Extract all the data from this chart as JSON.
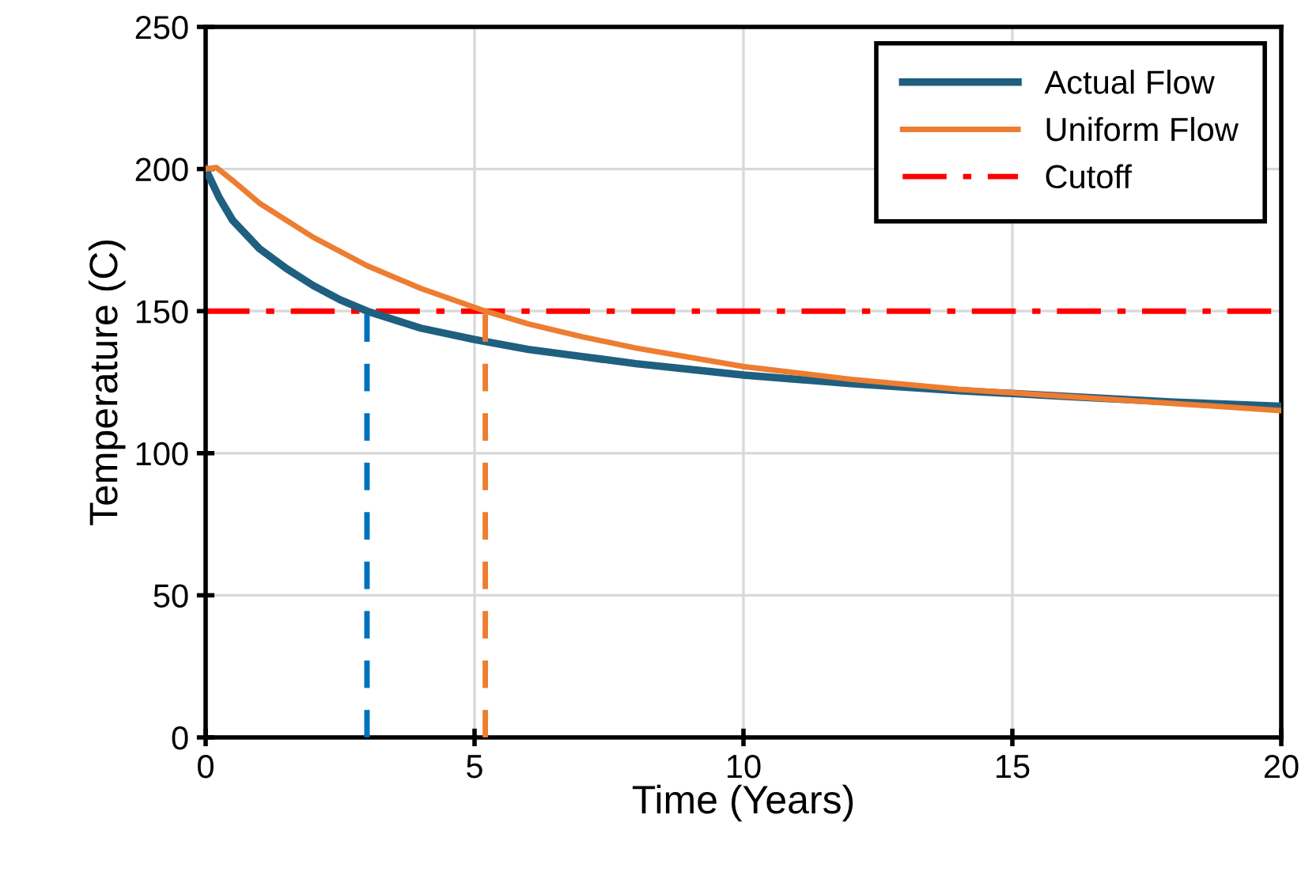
{
  "chart_data": {
    "type": "line",
    "xlabel": "Time (Years)",
    "ylabel": "Temperature (C)",
    "xlim": [
      0,
      20
    ],
    "xticks": [
      0,
      5,
      10,
      15,
      20
    ],
    "ylim": [
      0,
      250
    ],
    "yticks": [
      0,
      50,
      100,
      150,
      200,
      250
    ],
    "grid": true,
    "legend": "top right",
    "marker": "none",
    "series": [
      {
        "name": "Actual Flow",
        "color": "#1f5f7f",
        "line_style": "solid",
        "x": [
          0,
          0.25,
          0.5,
          1,
          1.5,
          2,
          2.5,
          3,
          4,
          5,
          6,
          7,
          8,
          10,
          12,
          14,
          16,
          18,
          20
        ],
        "values": [
          200,
          190,
          182,
          172,
          165,
          159,
          154,
          150,
          144,
          140,
          136.5,
          134,
          131.5,
          127.5,
          124.5,
          122,
          120,
          118,
          116.5
        ]
      },
      {
        "name": "Uniform Flow",
        "color": "#ed7d31",
        "line_style": "solid",
        "x": [
          0,
          0.2,
          0.5,
          1,
          2,
          3,
          4,
          5.2,
          6,
          7,
          8,
          10,
          12,
          14,
          16,
          18,
          20
        ],
        "values": [
          200,
          200.5,
          196,
          188,
          176,
          166,
          158,
          150,
          145.5,
          141,
          137,
          130.5,
          126,
          122.5,
          120,
          117.5,
          115
        ]
      },
      {
        "color": "#0070c0",
        "line_style": "dashed",
        "x": [
          3,
          3
        ],
        "values": [
          0,
          150
        ]
      },
      {
        "color": "#ed7d31",
        "line_style": "dashed",
        "x": [
          5.2,
          5.2
        ],
        "values": [
          0,
          150
        ]
      }
    ],
    "ref_lines": [
      {
        "axis": "y",
        "value": 150,
        "label": "Cutoff",
        "color": "#ff0000",
        "line_style": "dashdot"
      }
    ]
  }
}
